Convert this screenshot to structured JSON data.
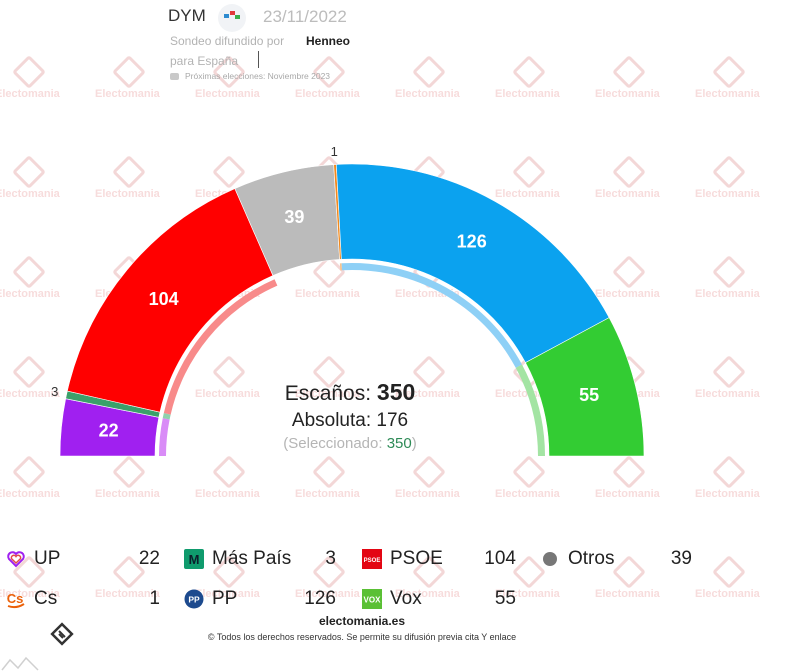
{
  "header": {
    "pollster": "DYM",
    "date": "23/11/2022",
    "line1": "Sondeo difundido por",
    "client": "Henneo",
    "line2": "para España",
    "next_elections": "Próximas elecciones: Noviembre 2023"
  },
  "watermark_text": "Electomania",
  "chart_data": {
    "type": "hemicycle",
    "title": "",
    "total_seats": 350,
    "majority": 176,
    "selected": 350,
    "series": [
      {
        "name": "UP",
        "seats": 22,
        "color": "#a020f0",
        "inner_color": "#d98cf7",
        "label": "22",
        "label_outside": false
      },
      {
        "name": "Más País",
        "seats": 3,
        "color": "#3aa06a",
        "inner_color": "#8fd1ad",
        "label": "3",
        "label_outside": true
      },
      {
        "name": "PSOE",
        "seats": 104,
        "color": "#ff0000",
        "inner_color": "#f88a8a",
        "label": "104",
        "label_outside": false
      },
      {
        "name": "Otros",
        "seats": 39,
        "color": "#bbbbbb",
        "inner_color": null,
        "label": "39",
        "label_outside": false
      },
      {
        "name": "Cs",
        "seats": 1,
        "color": "#f18a1f",
        "inner_color": "#f8c28a",
        "label": "1",
        "label_outside": true
      },
      {
        "name": "PP",
        "seats": 126,
        "color": "#0ba2ef",
        "inner_color": "#8ed0f6",
        "label": "126",
        "label_outside": false
      },
      {
        "name": "Vox",
        "seats": 55,
        "color": "#33cc33",
        "inner_color": "#a3e4a3",
        "label": "55",
        "label_outside": false
      }
    ]
  },
  "center": {
    "total_label": "Escaños:",
    "total_value": "350",
    "majority_text": "Absoluta: 176",
    "selected_open": "(Seleccionado:",
    "selected_value": "350",
    "selected_close": ")"
  },
  "legend": [
    {
      "name": "UP",
      "value": "22",
      "icon": "heart-icon",
      "color": "#a020f0"
    },
    {
      "name": "Más País",
      "value": "3",
      "icon": "mas-pais-logo",
      "color": "#0f9b6d"
    },
    {
      "name": "PSOE",
      "value": "104",
      "icon": "psoe-logo",
      "color": "#e30613"
    },
    {
      "name": "Otros",
      "value": "39",
      "icon": "dot-icon",
      "color": "#777777"
    },
    {
      "name": "Cs",
      "value": "1",
      "icon": "cs-logo",
      "color": "#eb6109"
    },
    {
      "name": "PP",
      "value": "126",
      "icon": "pp-logo",
      "color": "#1d4a8e"
    },
    {
      "name": "Vox",
      "value": "55",
      "icon": "vox-logo",
      "color": "#5ac035"
    }
  ],
  "icon_labels": {
    "mas_pais": "M",
    "psoe": "PSOE",
    "cs": "Cs",
    "pp": "PP",
    "vox": "VOX"
  },
  "footer": {
    "site": "electomania.es",
    "rights": "© Todos los derechos reservados. Se permite su difusión previa cita Y enlace"
  }
}
